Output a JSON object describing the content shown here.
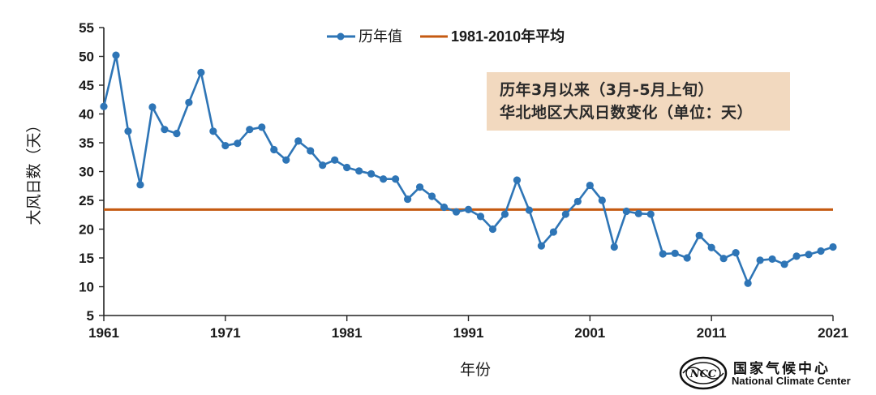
{
  "chart_data": {
    "type": "line",
    "xlabel": "年份",
    "ylabel": "大风日数（天）",
    "xlim": [
      1961,
      2021
    ],
    "ylim": [
      5,
      55
    ],
    "x_ticks": [
      "1961",
      "1971",
      "1981",
      "1991",
      "2001",
      "2011",
      "2021"
    ],
    "y_ticks": [
      "5",
      "10",
      "15",
      "20",
      "25",
      "30",
      "35",
      "40",
      "45",
      "50",
      "55"
    ],
    "legend_position": "top-center",
    "series": [
      {
        "name": "历年值",
        "color": "#2e75b6",
        "x": [
          1961,
          1962,
          1963,
          1964,
          1965,
          1966,
          1967,
          1968,
          1969,
          1970,
          1971,
          1972,
          1973,
          1974,
          1975,
          1976,
          1977,
          1978,
          1979,
          1980,
          1981,
          1982,
          1983,
          1984,
          1985,
          1986,
          1987,
          1988,
          1989,
          1990,
          1991,
          1992,
          1993,
          1994,
          1995,
          1996,
          1997,
          1998,
          1999,
          2000,
          2001,
          2002,
          2003,
          2004,
          2005,
          2006,
          2007,
          2008,
          2009,
          2010,
          2011,
          2012,
          2013,
          2014,
          2015,
          2016,
          2017,
          2018,
          2019,
          2020,
          2021
        ],
        "values": [
          41.3,
          50.2,
          37.0,
          27.7,
          41.2,
          37.3,
          36.6,
          42.0,
          47.2,
          37.0,
          34.5,
          34.9,
          37.3,
          37.7,
          33.8,
          32.0,
          35.3,
          33.6,
          31.1,
          32.0,
          30.7,
          30.1,
          29.6,
          28.7,
          28.7,
          25.2,
          27.3,
          25.7,
          23.8,
          23.0,
          23.4,
          22.2,
          20.0,
          22.6,
          28.5,
          23.3,
          17.1,
          19.5,
          22.6,
          24.8,
          27.6,
          25.0,
          16.9,
          23.1,
          22.7,
          22.6,
          15.7,
          15.8,
          15.0,
          18.9,
          16.8,
          14.9,
          15.9,
          10.6,
          14.6,
          14.8,
          13.9,
          15.3,
          15.6,
          16.2,
          16.9
        ]
      },
      {
        "name": "1981-2010年平均",
        "color": "#c55a11",
        "type": "hline",
        "value": 23.4
      }
    ]
  },
  "annotation": {
    "line1": "历年3月以来（3月-5月上旬）",
    "line2": "华北地区大风日数变化（单位：天）"
  },
  "logo": {
    "name_cn": "国家气候中心",
    "name_en": "National Climate Center",
    "emblem_text": "NCC"
  }
}
